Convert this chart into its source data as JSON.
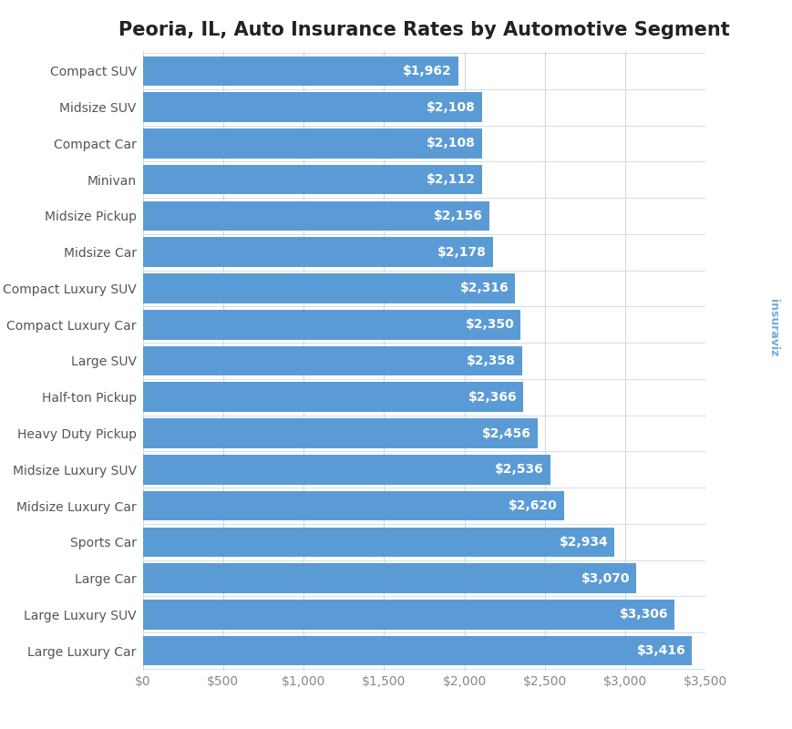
{
  "title": "Peoria, IL, Auto Insurance Rates by Automotive Segment",
  "categories": [
    "Large Luxury Car",
    "Large Luxury SUV",
    "Large Car",
    "Sports Car",
    "Midsize Luxury Car",
    "Midsize Luxury SUV",
    "Heavy Duty Pickup",
    "Half-ton Pickup",
    "Large SUV",
    "Compact Luxury Car",
    "Compact Luxury SUV",
    "Midsize Car",
    "Midsize Pickup",
    "Minivan",
    "Compact Car",
    "Midsize SUV",
    "Compact SUV"
  ],
  "values": [
    3416,
    3306,
    3070,
    2934,
    2620,
    2536,
    2456,
    2366,
    2358,
    2350,
    2316,
    2178,
    2156,
    2112,
    2108,
    2108,
    1962
  ],
  "bar_color": "#5B9BD5",
  "label_color": "#FFFFFF",
  "background_color": "#FFFFFF",
  "grid_color": "#C9D9E8",
  "title_fontsize": 15,
  "label_fontsize": 10,
  "tick_fontsize": 10,
  "xlim": [
    0,
    3500
  ],
  "xticks": [
    0,
    500,
    1000,
    1500,
    2000,
    2500,
    3000,
    3500
  ],
  "xtick_labels": [
    "$0",
    "$500",
    "$1,000",
    "$1,500",
    "$2,000",
    "$2,500",
    "$3,000",
    "$3,500"
  ],
  "ytick_color": "#555555",
  "xtick_color": "#888888",
  "watermark_color": "#5B9BD5",
  "watermark_text": "insuraviz"
}
